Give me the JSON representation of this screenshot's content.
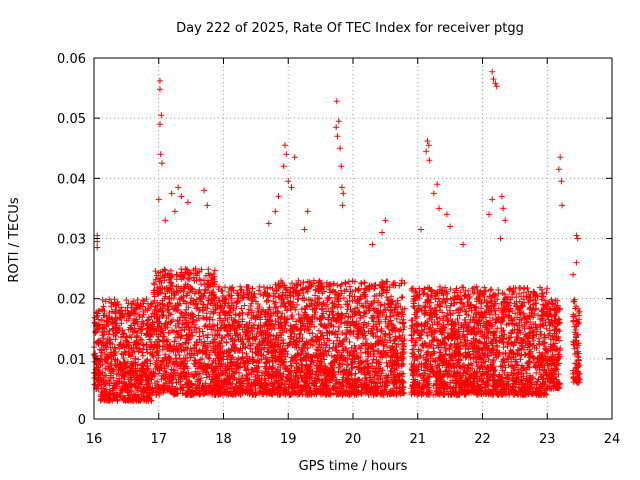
{
  "chart_data": {
    "type": "scatter",
    "title": "Day 222 of 2025, Rate Of TEC Index for receiver ptgg",
    "xlabel": "GPS time / hours",
    "ylabel": "ROTI / TECUs",
    "xlim": [
      16,
      24
    ],
    "ylim": [
      0,
      0.06
    ],
    "x_ticks": [
      "16",
      "17",
      "18",
      "19",
      "20",
      "21",
      "22",
      "23",
      "24"
    ],
    "y_ticks": [
      "0",
      "0.01",
      "0.02",
      "0.03",
      "0.04",
      "0.05",
      "0.06"
    ],
    "grid": true,
    "marker": "+",
    "color": "#ff0000",
    "series": [
      {
        "name": "ROTI",
        "base_band": [
          {
            "x": [
              16.0,
              16.1
            ],
            "low": 0.005,
            "high": 0.018
          },
          {
            "x": [
              16.1,
              16.9
            ],
            "low": 0.003,
            "high": 0.02
          },
          {
            "x": [
              16.9,
              17.9
            ],
            "low": 0.004,
            "high": 0.025
          },
          {
            "x": [
              17.9,
              18.8
            ],
            "low": 0.004,
            "high": 0.022
          },
          {
            "x": [
              18.8,
              20.8
            ],
            "low": 0.004,
            "high": 0.023
          },
          {
            "x": [
              20.9,
              23.0
            ],
            "low": 0.004,
            "high": 0.022
          },
          {
            "x": [
              23.0,
              23.2
            ],
            "low": 0.005,
            "high": 0.02
          },
          {
            "x": [
              23.4,
              23.5
            ],
            "low": 0.006,
            "high": 0.02
          }
        ],
        "outliers": [
          {
            "x": 16.05,
            "y": 0.0305
          },
          {
            "x": 16.05,
            "y": 0.0295
          },
          {
            "x": 16.05,
            "y": 0.0285
          },
          {
            "x": 17.02,
            "y": 0.0562
          },
          {
            "x": 17.02,
            "y": 0.0548
          },
          {
            "x": 17.04,
            "y": 0.0505
          },
          {
            "x": 17.02,
            "y": 0.049
          },
          {
            "x": 17.03,
            "y": 0.044
          },
          {
            "x": 17.05,
            "y": 0.0425
          },
          {
            "x": 17.0,
            "y": 0.0365
          },
          {
            "x": 17.2,
            "y": 0.0375
          },
          {
            "x": 17.3,
            "y": 0.0385
          },
          {
            "x": 17.35,
            "y": 0.037
          },
          {
            "x": 17.45,
            "y": 0.036
          },
          {
            "x": 17.7,
            "y": 0.038
          },
          {
            "x": 17.75,
            "y": 0.0355
          },
          {
            "x": 17.1,
            "y": 0.033
          },
          {
            "x": 17.25,
            "y": 0.0345
          },
          {
            "x": 18.95,
            "y": 0.0455
          },
          {
            "x": 18.97,
            "y": 0.044
          },
          {
            "x": 18.93,
            "y": 0.042
          },
          {
            "x": 19.1,
            "y": 0.0435
          },
          {
            "x": 19.0,
            "y": 0.0395
          },
          {
            "x": 18.85,
            "y": 0.037
          },
          {
            "x": 19.05,
            "y": 0.0385
          },
          {
            "x": 18.8,
            "y": 0.0345
          },
          {
            "x": 19.3,
            "y": 0.0345
          },
          {
            "x": 18.7,
            "y": 0.0325
          },
          {
            "x": 19.25,
            "y": 0.0315
          },
          {
            "x": 19.75,
            "y": 0.0528
          },
          {
            "x": 19.78,
            "y": 0.0495
          },
          {
            "x": 19.74,
            "y": 0.0485
          },
          {
            "x": 19.76,
            "y": 0.047
          },
          {
            "x": 19.8,
            "y": 0.045
          },
          {
            "x": 19.82,
            "y": 0.042
          },
          {
            "x": 19.83,
            "y": 0.0385
          },
          {
            "x": 19.85,
            "y": 0.0375
          },
          {
            "x": 19.84,
            "y": 0.0355
          },
          {
            "x": 20.5,
            "y": 0.033
          },
          {
            "x": 20.45,
            "y": 0.031
          },
          {
            "x": 20.3,
            "y": 0.029
          },
          {
            "x": 21.15,
            "y": 0.0462
          },
          {
            "x": 21.17,
            "y": 0.0455
          },
          {
            "x": 21.13,
            "y": 0.0445
          },
          {
            "x": 21.18,
            "y": 0.043
          },
          {
            "x": 21.3,
            "y": 0.039
          },
          {
            "x": 21.25,
            "y": 0.0375
          },
          {
            "x": 21.33,
            "y": 0.035
          },
          {
            "x": 21.45,
            "y": 0.034
          },
          {
            "x": 21.5,
            "y": 0.032
          },
          {
            "x": 21.05,
            "y": 0.0315
          },
          {
            "x": 21.7,
            "y": 0.029
          },
          {
            "x": 22.15,
            "y": 0.0577
          },
          {
            "x": 22.17,
            "y": 0.0565
          },
          {
            "x": 22.2,
            "y": 0.0558
          },
          {
            "x": 22.22,
            "y": 0.0553
          },
          {
            "x": 22.15,
            "y": 0.0365
          },
          {
            "x": 22.3,
            "y": 0.037
          },
          {
            "x": 22.32,
            "y": 0.035
          },
          {
            "x": 22.1,
            "y": 0.034
          },
          {
            "x": 22.35,
            "y": 0.033
          },
          {
            "x": 22.28,
            "y": 0.03
          },
          {
            "x": 23.2,
            "y": 0.0435
          },
          {
            "x": 23.18,
            "y": 0.0415
          },
          {
            "x": 23.22,
            "y": 0.0395
          },
          {
            "x": 23.23,
            "y": 0.0355
          },
          {
            "x": 23.45,
            "y": 0.0305
          },
          {
            "x": 23.47,
            "y": 0.03
          },
          {
            "x": 23.45,
            "y": 0.026
          },
          {
            "x": 23.4,
            "y": 0.024
          }
        ]
      }
    ]
  }
}
